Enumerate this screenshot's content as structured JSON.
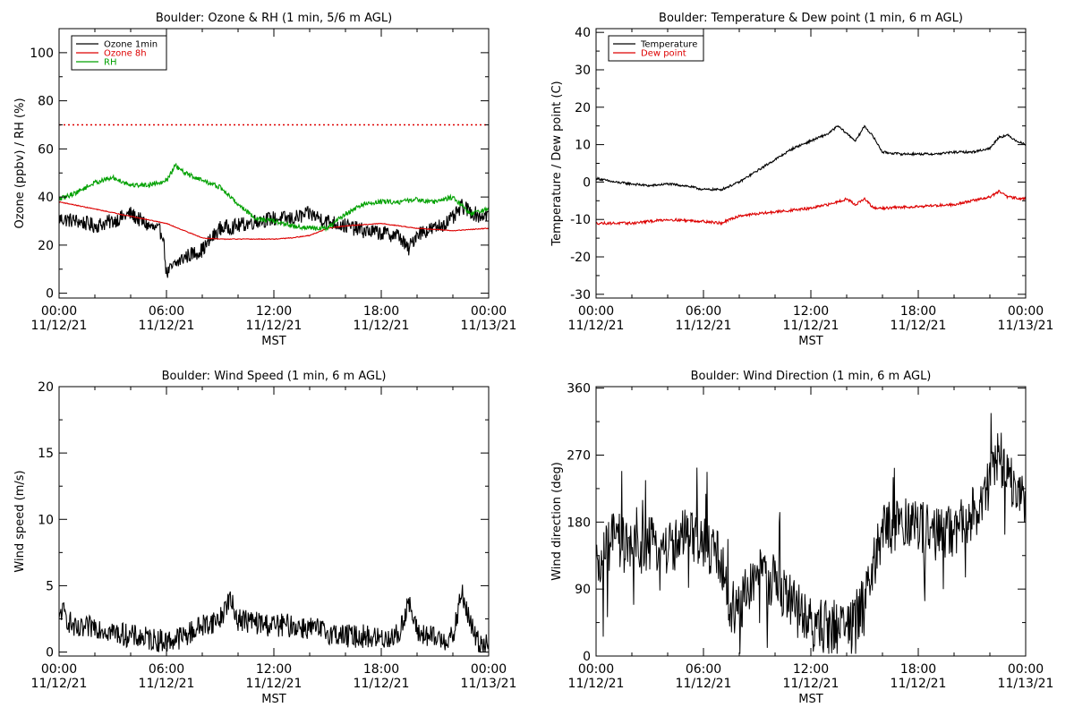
{
  "chart_data": [
    {
      "type": "line",
      "title": "Boulder: Ozone & RH (1 min, 5/6 m AGL)",
      "xlabel": "MST",
      "ylabel": "Ozone (ppbv) / RH (%)",
      "xlim": [
        "11/12/21 00:00",
        "11/13/21 00:00"
      ],
      "ylim": [
        -2,
        110
      ],
      "yticks": [
        0,
        20,
        40,
        60,
        80,
        100
      ],
      "xticks": [
        {
          "time": "00:00",
          "date": "11/12/21"
        },
        {
          "time": "06:00",
          "date": "11/12/21"
        },
        {
          "time": "12:00",
          "date": "11/12/21"
        },
        {
          "time": "18:00",
          "date": "11/12/21"
        },
        {
          "time": "00:00",
          "date": "11/13/21"
        }
      ],
      "legend": "top-left",
      "reference_lines": [
        {
          "y": 70,
          "color": "#dd0000",
          "style": "dotted"
        }
      ],
      "series": [
        {
          "name": "Ozone 1min",
          "color": "#000000",
          "x_hours": [
            0,
            1,
            2,
            3,
            4,
            5,
            5.8,
            6,
            6.5,
            7,
            8,
            9,
            10,
            11,
            12,
            13,
            14,
            15,
            16,
            17,
            18,
            19,
            19.5,
            20,
            21,
            22,
            22.5,
            23,
            23.5,
            24
          ],
          "values": [
            31,
            30,
            28,
            30,
            33,
            28,
            25,
            8,
            12,
            15,
            18,
            27,
            28,
            30,
            31,
            31,
            33,
            30,
            28,
            26,
            25,
            24,
            18,
            25,
            27,
            31,
            36,
            34,
            32,
            33
          ]
        },
        {
          "name": "Ozone 8h",
          "color": "#dd0000",
          "x_hours": [
            0,
            2,
            4,
            6,
            7,
            8,
            9,
            10,
            12,
            13,
            14,
            15,
            16,
            18,
            20,
            22,
            24
          ],
          "values": [
            38,
            35,
            32,
            29,
            26,
            23,
            22.5,
            22.5,
            22.5,
            23,
            24,
            27,
            28,
            29,
            27,
            26,
            27
          ]
        },
        {
          "name": "RH",
          "color": "#00a000",
          "x_hours": [
            0,
            1,
            2,
            3,
            4,
            5,
            6,
            6.5,
            7,
            8,
            9,
            10,
            11,
            12,
            13,
            14,
            15,
            16,
            17,
            18,
            19,
            20,
            21,
            22,
            23,
            24
          ],
          "values": [
            39,
            42,
            46,
            48,
            45,
            45,
            47,
            53,
            50,
            47,
            44,
            37,
            31,
            30,
            28,
            27,
            27,
            33,
            37,
            38,
            38,
            39,
            38,
            40,
            33,
            35
          ]
        }
      ]
    },
    {
      "type": "line",
      "title": "Boulder: Temperature & Dew point (1 min, 6 m AGL)",
      "xlabel": "MST",
      "ylabel": "Temperature / Dew point (C)",
      "xlim": [
        "11/12/21 00:00",
        "11/13/21 00:00"
      ],
      "ylim": [
        -31,
        41
      ],
      "yticks": [
        -30,
        -20,
        -10,
        0,
        10,
        20,
        30,
        40
      ],
      "xticks": [
        {
          "time": "00:00",
          "date": "11/12/21"
        },
        {
          "time": "06:00",
          "date": "11/12/21"
        },
        {
          "time": "12:00",
          "date": "11/12/21"
        },
        {
          "time": "18:00",
          "date": "11/12/21"
        },
        {
          "time": "00:00",
          "date": "11/13/21"
        }
      ],
      "legend": "top-left",
      "series": [
        {
          "name": "Temperature",
          "color": "#000000",
          "x_hours": [
            0,
            1,
            2,
            3,
            4,
            5,
            6,
            7,
            8,
            9,
            10,
            11,
            12,
            13,
            13.5,
            14,
            14.5,
            15,
            15.5,
            16,
            17,
            18,
            19,
            20,
            21,
            22,
            22.5,
            23,
            23.5,
            24
          ],
          "values": [
            1,
            0,
            -0.5,
            -1,
            -0.5,
            -1,
            -2,
            -2,
            0,
            3,
            6,
            9,
            11,
            13,
            15,
            13,
            11,
            15,
            12,
            8,
            7.5,
            7.5,
            7.5,
            8,
            8,
            9,
            12,
            12.5,
            11,
            10
          ]
        },
        {
          "name": "Dew point",
          "color": "#dd0000",
          "x_hours": [
            0,
            2,
            4,
            6,
            7,
            8,
            10,
            12,
            13,
            14,
            14.5,
            15,
            15.5,
            16,
            18,
            20,
            21,
            22,
            22.5,
            23,
            24
          ],
          "values": [
            -11,
            -11,
            -10,
            -10.5,
            -11,
            -9,
            -8,
            -7,
            -6,
            -4.5,
            -6,
            -4.5,
            -7,
            -7,
            -6.5,
            -6,
            -5,
            -4,
            -2.5,
            -4,
            -4.5
          ]
        }
      ]
    },
    {
      "type": "line",
      "title": "Boulder: Wind Speed (1 min, 6 m AGL)",
      "xlabel": "MST",
      "ylabel": "Wind speed (m/s)",
      "xlim": [
        "11/12/21 00:00",
        "11/13/21 00:00"
      ],
      "ylim": [
        -0.3,
        20
      ],
      "yticks": [
        0,
        5,
        10,
        15,
        20
      ],
      "xticks": [
        {
          "time": "00:00",
          "date": "11/12/21"
        },
        {
          "time": "06:00",
          "date": "11/12/21"
        },
        {
          "time": "12:00",
          "date": "11/12/21"
        },
        {
          "time": "18:00",
          "date": "11/12/21"
        },
        {
          "time": "00:00",
          "date": "11/13/21"
        }
      ],
      "series": [
        {
          "name": "",
          "color": "#000000",
          "x_hours": [
            0,
            0.1,
            1,
            2,
            3,
            4,
            5,
            6,
            7,
            8,
            9,
            9.5,
            10,
            11,
            12,
            13,
            14,
            15,
            16,
            17,
            18,
            19,
            19.5,
            20,
            21,
            22,
            22.5,
            23,
            23.5,
            24
          ],
          "values": [
            2,
            3.2,
            1.5,
            2,
            1.5,
            1.2,
            1,
            0.8,
            1.2,
            2,
            2.5,
            4,
            2.5,
            2.2,
            2,
            2,
            1.8,
            1.5,
            1.2,
            1.2,
            1,
            1.3,
            3.8,
            1.5,
            1,
            1,
            4.5,
            2,
            0.5,
            1
          ]
        }
      ]
    },
    {
      "type": "line",
      "title": "Boulder: Wind Direction (1 min, 6 m AGL)",
      "xlabel": "MST",
      "ylabel": "Wind direction (deg)",
      "xlim": [
        "11/12/21 00:00",
        "11/13/21 00:00"
      ],
      "ylim": [
        0,
        362
      ],
      "yticks": [
        0,
        90,
        180,
        270,
        360
      ],
      "xticks": [
        {
          "time": "00:00",
          "date": "11/12/21"
        },
        {
          "time": "06:00",
          "date": "11/12/21"
        },
        {
          "time": "12:00",
          "date": "11/12/21"
        },
        {
          "time": "18:00",
          "date": "11/12/21"
        },
        {
          "time": "00:00",
          "date": "11/13/21"
        }
      ],
      "series": [
        {
          "name": "",
          "color": "#000000",
          "x_hours": [
            0,
            1,
            2,
            3,
            4,
            5,
            6,
            7,
            7.5,
            8,
            9,
            10,
            11,
            12,
            13,
            14,
            15,
            16,
            17,
            18,
            19,
            20,
            21,
            22,
            22.5,
            23,
            23.5,
            24
          ],
          "values": [
            110,
            160,
            140,
            150,
            145,
            160,
            150,
            130,
            60,
            70,
            110,
            100,
            70,
            40,
            40,
            40,
            70,
            170,
            180,
            175,
            160,
            170,
            190,
            230,
            270,
            250,
            220,
            200
          ]
        }
      ]
    }
  ]
}
